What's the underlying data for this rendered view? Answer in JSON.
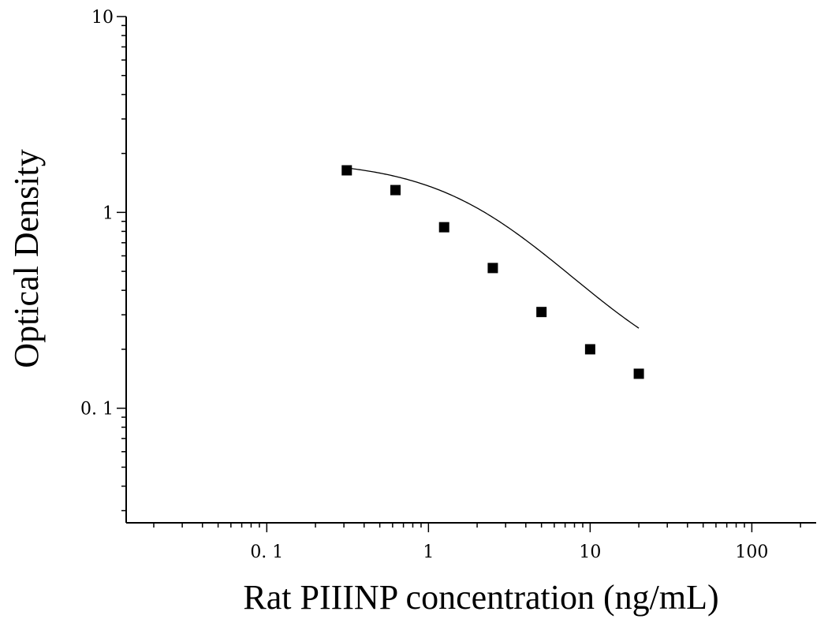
{
  "chart_data": {
    "type": "scatter",
    "title": "",
    "xlabel": "Rat PIIINP concentration (ng/mL)",
    "ylabel": "Optical Density",
    "x_scale": "log",
    "y_scale": "log",
    "xlim": [
      0.0135,
      250
    ],
    "ylim": [
      0.026,
      10
    ],
    "x_ticks": [
      {
        "value": 0.1,
        "label": "0. 1"
      },
      {
        "value": 1,
        "label": "1"
      },
      {
        "value": 10,
        "label": "10"
      },
      {
        "value": 100,
        "label": "100"
      }
    ],
    "y_ticks": [
      {
        "value": 10,
        "label": "10"
      },
      {
        "value": 1,
        "label": "1"
      },
      {
        "value": 0.1,
        "label": "0. 1"
      }
    ],
    "grid": false,
    "legend": false,
    "series": [
      {
        "marker": "square",
        "color": "#000000",
        "x": [
          0.3125,
          0.625,
          1.25,
          2.5,
          5,
          10,
          20
        ],
        "y": [
          1.64,
          1.3,
          0.84,
          0.52,
          0.31,
          0.2,
          0.15
        ]
      }
    ],
    "fit_curve": {
      "type": "4PL",
      "A": 1.85,
      "D": 0.118,
      "C": 2.3,
      "B": 1.13,
      "color": "#000000"
    }
  }
}
